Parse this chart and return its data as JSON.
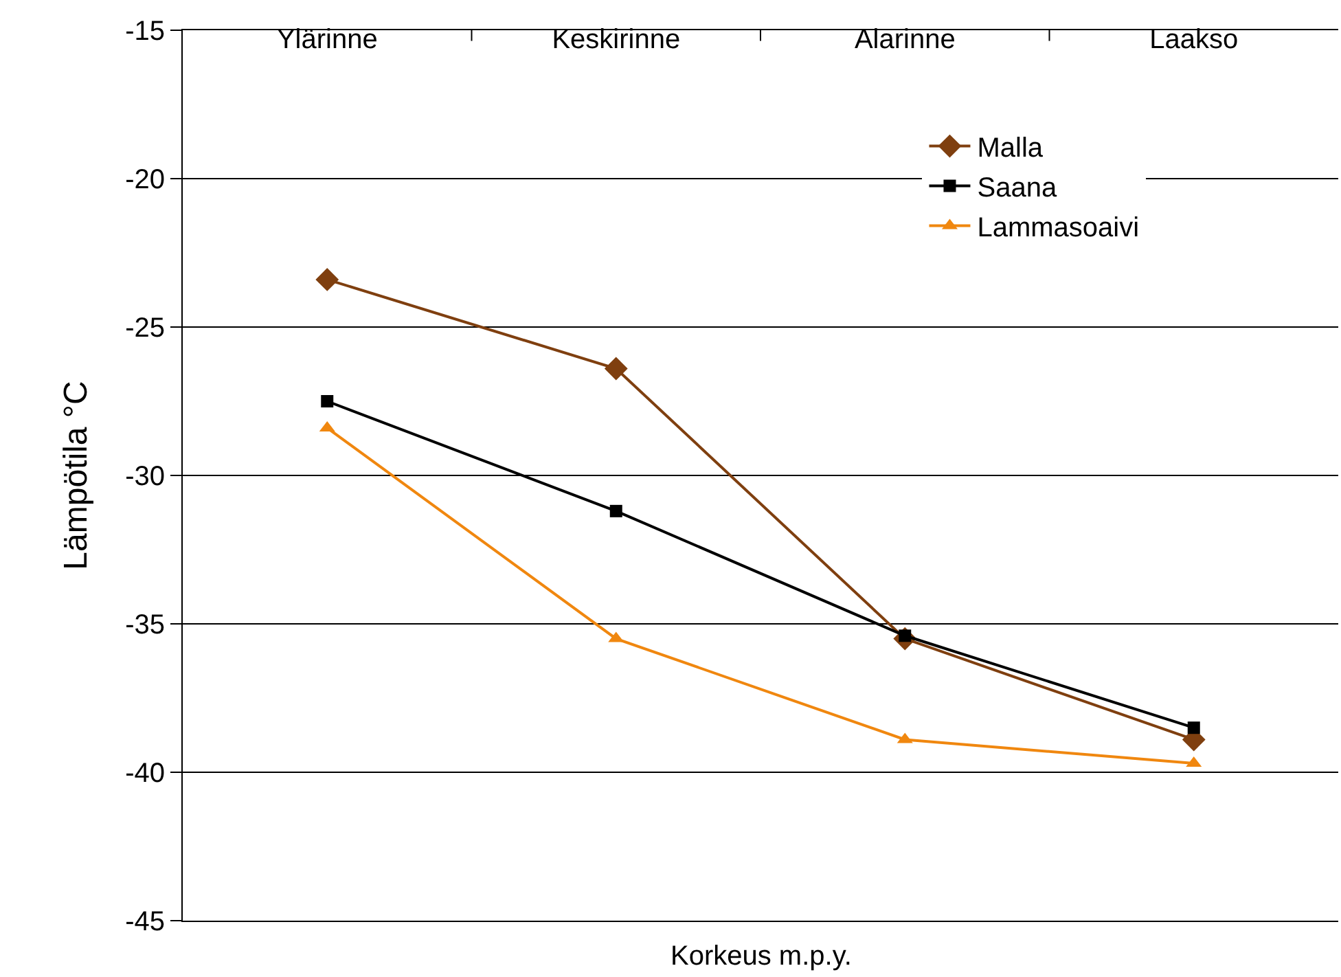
{
  "chart_data": {
    "type": "line",
    "xlabel": "Korkeus m.p.y.",
    "ylabel": "Lämpötila °C",
    "categories": [
      "Ylärinne",
      "Keskirinne",
      "Alarinne",
      "Laakso"
    ],
    "series": [
      {
        "name": "Malla",
        "color": "#7f3f0f",
        "marker": "diamond",
        "values": [
          -23.4,
          -26.4,
          -35.5,
          -38.9
        ]
      },
      {
        "name": "Saana",
        "color": "#000000",
        "marker": "square",
        "values": [
          -27.5,
          -31.2,
          -35.4,
          -38.5
        ]
      },
      {
        "name": "Lammasoaivi",
        "color": "#f0870f",
        "marker": "triangle",
        "values": [
          -28.4,
          -35.5,
          -38.9,
          -39.7
        ]
      }
    ],
    "ylim": [
      -45,
      -15
    ],
    "yticks": [
      -45,
      -40,
      -35,
      -30,
      -25,
      -20,
      -15
    ],
    "grid": "y",
    "legend": "top right",
    "line_style": "solid"
  }
}
